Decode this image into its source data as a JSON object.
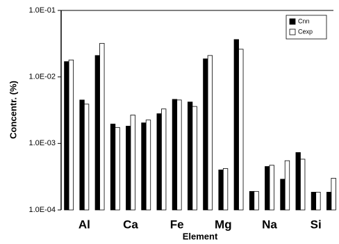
{
  "chart_data": {
    "type": "bar",
    "categories": [
      null,
      "Al",
      null,
      null,
      "Ca",
      null,
      null,
      "Fe",
      null,
      null,
      "Mg",
      null,
      null,
      "Na",
      null,
      null,
      "Si",
      null
    ],
    "series": [
      {
        "name": "Cnn",
        "color": "#000000",
        "values": [
          0.017,
          0.0045,
          0.021,
          0.00196,
          0.00182,
          0.00204,
          0.0028,
          0.0046,
          0.0042,
          0.0187,
          0.0004,
          0.0365,
          0.00019,
          0.00045,
          0.00029,
          0.00073,
          0.000185,
          0.000185
        ]
      },
      {
        "name": "Cexp",
        "color": "#ffffff",
        "values": [
          0.018,
          0.0039,
          0.032,
          0.00174,
          0.00267,
          0.00225,
          0.0033,
          0.0045,
          0.0036,
          0.021,
          0.00042,
          0.0261,
          0.00019,
          0.00047,
          0.00055,
          0.00058,
          0.000185,
          0.0003
        ]
      }
    ],
    "x_label": "Element",
    "y_label": "Concentr. (%)",
    "ylim": [
      0.0001,
      0.1
    ],
    "log_y": true,
    "yticks": [
      {
        "value": 0.0001,
        "label": "1.0E-04"
      },
      {
        "value": 0.001,
        "label": "1.0E-03"
      },
      {
        "value": 0.01,
        "label": "1.0E-02"
      },
      {
        "value": 0.1,
        "label": "1.0E-01"
      }
    ],
    "legend": "top-right"
  }
}
